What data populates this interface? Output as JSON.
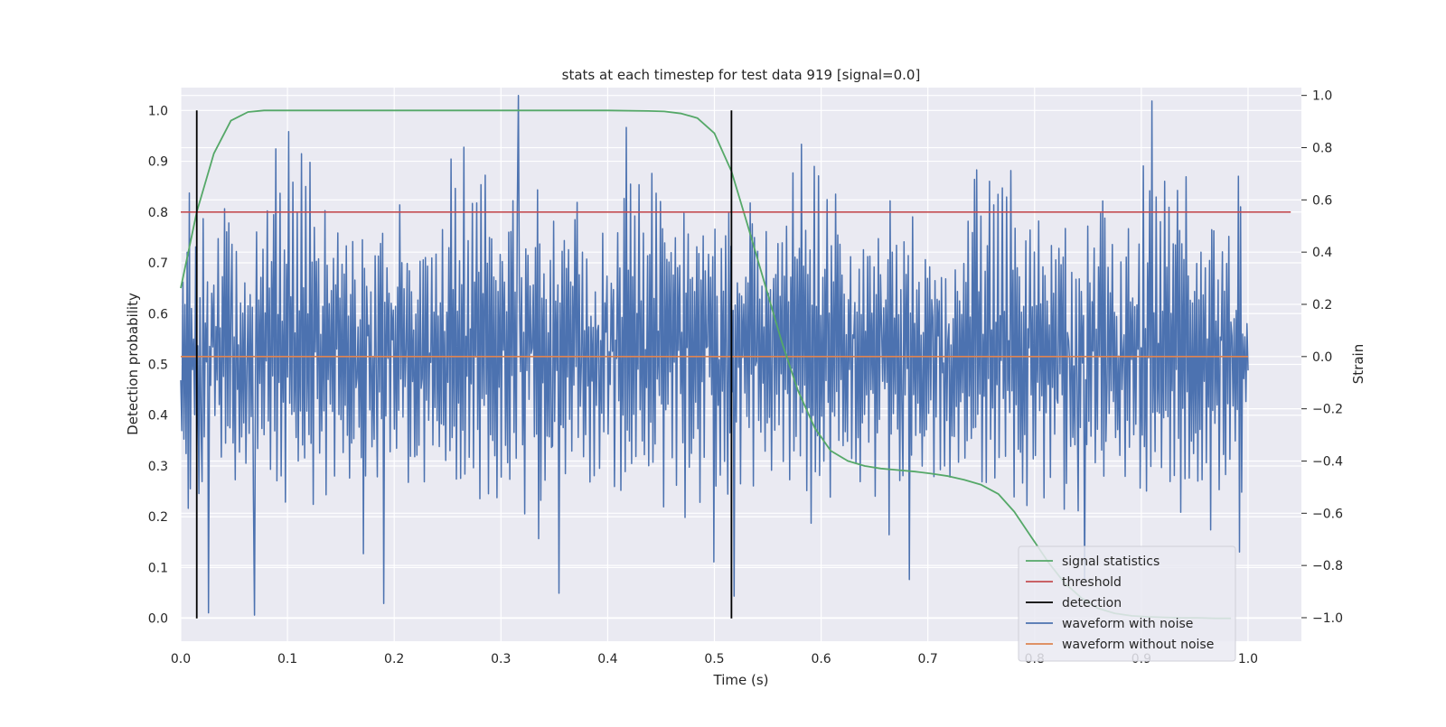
{
  "chart_data": {
    "type": "line",
    "title": "stats at each timestep for test data 919 [signal=0.0]",
    "xlabel": "Time (s)",
    "ylabel_left": "Detection probability",
    "ylabel_right": "Strain",
    "xlim": [
      0.0,
      1.05
    ],
    "ylim_left": [
      -0.045,
      1.045
    ],
    "ylim_right": [
      -1.09,
      1.03
    ],
    "x_ticks": [
      "0.0",
      "0.1",
      "0.2",
      "0.3",
      "0.4",
      "0.5",
      "0.6",
      "0.7",
      "0.8",
      "0.9",
      "1.0"
    ],
    "y_ticks_left": [
      "0.0",
      "0.1",
      "0.2",
      "0.3",
      "0.4",
      "0.5",
      "0.6",
      "0.7",
      "0.8",
      "0.9",
      "1.0"
    ],
    "y_ticks_right": [
      "−1.0",
      "−0.8",
      "−0.6",
      "−0.4",
      "−0.2",
      "0.0",
      "0.2",
      "0.4",
      "0.6",
      "0.8",
      "1.0"
    ],
    "grid": true,
    "legend_position": "lower-right",
    "legend": [
      {
        "label": "signal statistics",
        "color": "#55a868"
      },
      {
        "label": "threshold",
        "color": "#c44e52"
      },
      {
        "label": "detection",
        "color": "#000000"
      },
      {
        "label": "waveform with noise",
        "color": "#4c72b0"
      },
      {
        "label": "waveform without noise",
        "color": "#dd8452"
      }
    ],
    "signal_statistics": {
      "axis": "left",
      "x": [
        0.0,
        0.015,
        0.031,
        0.047,
        0.063,
        0.078,
        0.094,
        0.2,
        0.3,
        0.4,
        0.438,
        0.453,
        0.469,
        0.484,
        0.5,
        0.516,
        0.531,
        0.547,
        0.563,
        0.578,
        0.594,
        0.609,
        0.625,
        0.641,
        0.656,
        0.672,
        0.688,
        0.703,
        0.719,
        0.734,
        0.75,
        0.766,
        0.781,
        0.797,
        0.813,
        0.828,
        0.844,
        0.859,
        0.875,
        0.891,
        0.906,
        0.922,
        0.938,
        0.953,
        0.969,
        0.984
      ],
      "y": [
        0.65,
        0.8,
        0.915,
        0.98,
        0.997,
        1.0,
        1.0,
        1.0,
        1.0,
        1.0,
        0.999,
        0.998,
        0.994,
        0.985,
        0.955,
        0.88,
        0.775,
        0.66,
        0.545,
        0.45,
        0.375,
        0.33,
        0.31,
        0.3,
        0.295,
        0.292,
        0.289,
        0.285,
        0.28,
        0.273,
        0.263,
        0.245,
        0.21,
        0.16,
        0.11,
        0.07,
        0.04,
        0.02,
        0.01,
        0.005,
        0.003,
        0.002,
        0.001,
        0.001,
        0.0,
        0.0
      ]
    },
    "threshold": {
      "axis": "left",
      "x": [
        0.0,
        1.04
      ],
      "y": [
        0.8,
        0.8
      ]
    },
    "detection": {
      "axis": "left",
      "x": [
        0.015,
        0.516
      ],
      "y_range": [
        0.0,
        1.0
      ]
    },
    "waveform_without_noise": {
      "axis": "right",
      "x": [
        0.0,
        1.0
      ],
      "y": [
        0.0,
        0.0
      ]
    },
    "waveform_with_noise": {
      "axis": "right",
      "x_start": 0.0,
      "x_end": 1.0,
      "y": [
        0.0,
        -0.15,
        0.28,
        -0.2,
        0.35,
        -0.3,
        0.6,
        -0.7,
        0.55,
        -0.45,
        0.25,
        -0.1,
        0.18,
        -0.35,
        0.3,
        -0.25,
        0.12,
        -0.4,
        0.38,
        -0.2,
        -0.5,
        0.42,
        -0.32,
        0.29,
        -0.18,
        0.36,
        -0.99,
        0.08,
        -0.3,
        0.44,
        -0.12,
        0.31,
        -0.42,
        0.22,
        -0.05,
        0.37,
        -0.28,
        0.19,
        -0.38,
        0.27,
        -0.15,
        0.53,
        -0.22,
        0.48,
        -0.36,
        0.41,
        -0.2,
        0.05,
        0.33,
        -0.43,
        0.26,
        -0.33,
        0.39,
        -0.1,
        0.2,
        -0.47,
        0.34,
        -0.24,
        0.15,
        -0.41,
        0.43,
        -0.3,
        0.07,
        0.28,
        -0.37,
        0.24,
        -0.16,
        0.35,
        -0.46,
        0.18,
        -0.08,
        0.4,
        -0.34,
        0.21,
        -0.27,
        0.37,
        -0.13,
        0.3,
        -0.44,
        0.22,
        -0.2,
        0.71,
        -0.35,
        0.26,
        -0.5,
        0.36,
        -0.18,
        0.57,
        -0.3,
        0.95,
        -0.4,
        0.33,
        -0.25,
        0.62,
        -0.38,
        0.17,
        -0.29,
        0.46,
        -0.52,
        0.31,
        -0.12,
        0.78,
        -0.36,
        0.27,
        -0.23,
        0.64,
        -0.4,
        0.2,
        -0.31,
        0.5,
        -0.44,
        0.29,
        -0.15,
        0.82,
        -0.3,
        0.36,
        -0.48,
        0.56,
        -0.21,
        0.25,
        -0.33,
        0.69,
        -0.26,
        0.4,
        -0.55,
        0.43,
        -0.17,
        0.34,
        -0.37,
        0.3,
        -0.24,
        0.28,
        -0.42,
        0.33,
        -0.2,
        0.47,
        -0.49,
        0.27,
        -0.11,
        0.39,
        -0.32,
        0.22,
        -0.35,
        0.45,
        -0.58,
        0.36,
        -0.14,
        0.6,
        -0.4,
        0.19,
        -0.27,
        0.51,
        -0.45,
        0.24,
        -0.06,
        0.37,
        -0.3,
        0.26,
        -0.62,
        0.42,
        -0.19,
        0.33,
        -0.36,
        0.28
      ],
      "notable_peaks": {
        "max": 1.0,
        "max_x": 0.316,
        "min": -0.99,
        "min_x": 0.069
      }
    }
  }
}
